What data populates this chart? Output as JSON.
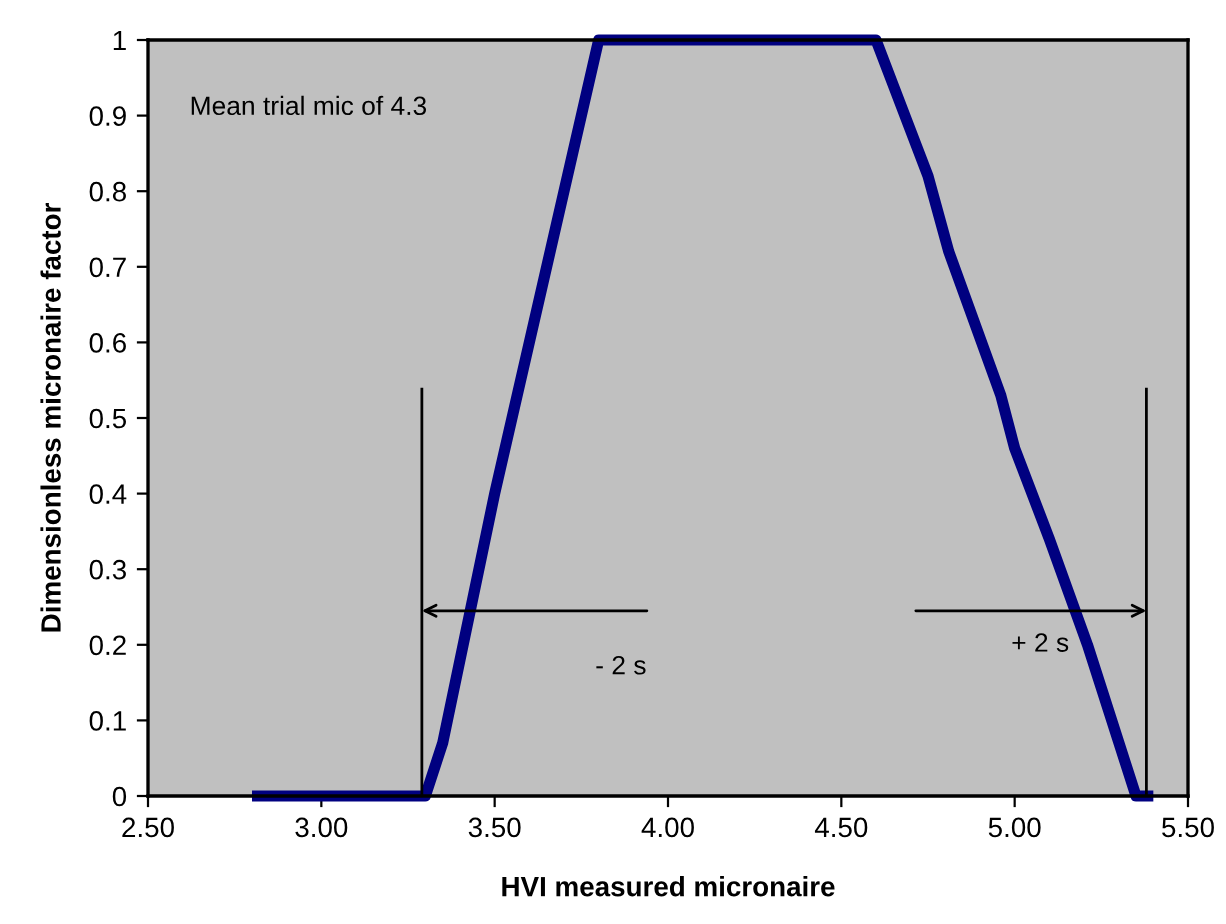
{
  "chart_data": {
    "type": "line",
    "xlabel": "HVI measured micronaire",
    "ylabel": "Dimensionless micronaire factor",
    "series": [
      {
        "color": "#000080",
        "x": [
          2.8,
          3.3,
          3.35,
          3.5,
          3.8,
          4.6,
          4.65,
          4.75,
          4.81,
          4.96,
          5.0,
          5.1,
          5.21,
          5.35,
          5.4
        ],
        "values": [
          0,
          0,
          0.07,
          0.4,
          1,
          1,
          0.94,
          0.82,
          0.72,
          0.53,
          0.46,
          0.34,
          0.2,
          0,
          0
        ]
      },
      {
        "color": "#000000",
        "x": [
          3.29,
          3.29
        ],
        "values": [
          0,
          0.54
        ]
      },
      {
        "color": "#000000",
        "x": [
          5.38,
          5.38
        ],
        "values": [
          0,
          0.54
        ]
      }
    ],
    "annotations": [
      "Mean trial mic of 4.3",
      "- 2 s",
      "+ 2 s"
    ],
    "xlim": [
      2.5,
      5.5
    ],
    "ylim": [
      0,
      1
    ],
    "xticks": [
      {
        "value": 2.5,
        "label": "2.50"
      },
      {
        "value": 3.0,
        "label": "3.00"
      },
      {
        "value": 3.5,
        "label": "3.50"
      },
      {
        "value": 4.0,
        "label": "4.00"
      },
      {
        "value": 4.5,
        "label": "4.50"
      },
      {
        "value": 5.0,
        "label": "5.00"
      },
      {
        "value": 5.5,
        "label": "5.50"
      }
    ],
    "yticks": [
      0,
      0.1,
      0.2,
      0.3,
      0.4,
      0.5,
      0.6,
      0.7,
      0.8,
      0.9,
      1
    ],
    "grid": false,
    "legend": false
  }
}
